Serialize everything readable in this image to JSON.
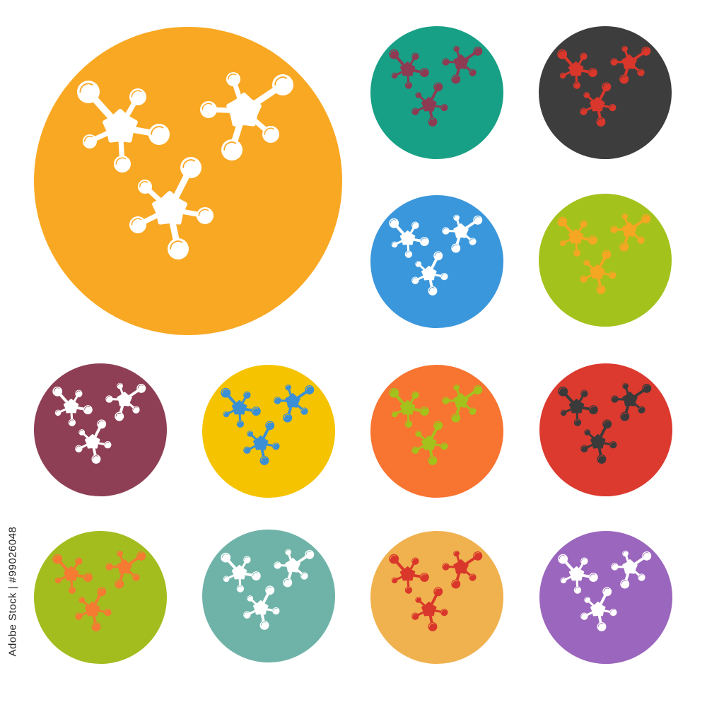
{
  "icons": [
    {
      "name": "large-orange",
      "bg": "#f9a823",
      "fg": "#ffffff"
    },
    {
      "name": "teal",
      "bg": "#17a085",
      "fg": "#8e3a52"
    },
    {
      "name": "charcoal",
      "bg": "#3d3d3d",
      "fg": "#d9372b"
    },
    {
      "name": "blue",
      "bg": "#3b97db",
      "fg": "#ffffff"
    },
    {
      "name": "lime",
      "bg": "#a3c21c",
      "fg": "#f5a623"
    },
    {
      "name": "maroon",
      "bg": "#8e3f55",
      "fg": "#ffffff"
    },
    {
      "name": "yellow",
      "bg": "#f5c300",
      "fg": "#3b8fd4"
    },
    {
      "name": "orange",
      "bg": "#f87431",
      "fg": "#a3c21c"
    },
    {
      "name": "red",
      "bg": "#dc3a2f",
      "fg": "#3a3a3a"
    },
    {
      "name": "olive-green",
      "bg": "#a3bd1f",
      "fg": "#f57a32"
    },
    {
      "name": "sage",
      "bg": "#6fb3a8",
      "fg": "#ffffff"
    },
    {
      "name": "tan",
      "bg": "#f0b24f",
      "fg": "#d9372b"
    },
    {
      "name": "purple",
      "bg": "#9b66bd",
      "fg": "#ffffff"
    }
  ],
  "icon_glyph": "molecule-icon",
  "watermark": "Adobe Stock | #99026048"
}
